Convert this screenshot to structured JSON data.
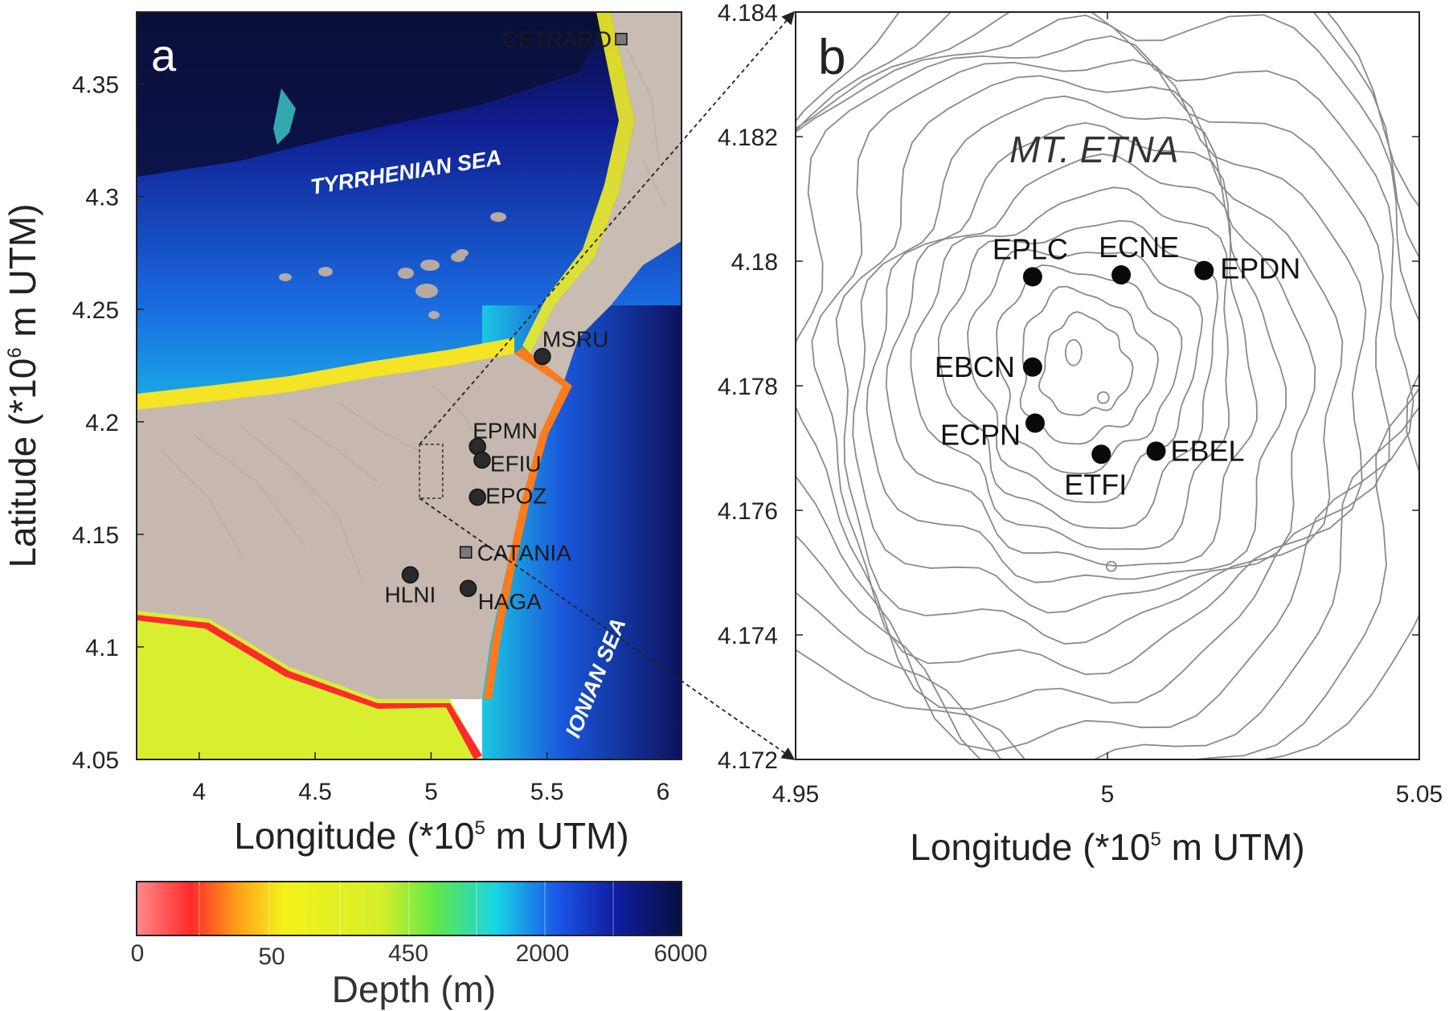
{
  "panel_a": {
    "label": "a",
    "xlabel": "Longitude (*10",
    "xlabel_sup": "5",
    "xlabel_tail": " m UTM)",
    "ylabel": "Latitude (*10",
    "ylabel_sup": "6",
    "ylabel_tail": " m UTM)",
    "xlim": [
      3.73,
      6.08
    ],
    "ylim": [
      4.05,
      4.382
    ],
    "xticks": [
      {
        "v": 4,
        "t": "4"
      },
      {
        "v": 4.5,
        "t": "4.5"
      },
      {
        "v": 5,
        "t": "5"
      },
      {
        "v": 5.5,
        "t": "5.5"
      },
      {
        "v": 6,
        "t": "6"
      }
    ],
    "yticks": [
      {
        "v": 4.05,
        "t": "4.05"
      },
      {
        "v": 4.1,
        "t": "4.1"
      },
      {
        "v": 4.15,
        "t": "4.15"
      },
      {
        "v": 4.2,
        "t": "4.2"
      },
      {
        "v": 4.25,
        "t": "4.25"
      },
      {
        "v": 4.3,
        "t": "4.3"
      },
      {
        "v": 4.35,
        "t": "4.35"
      }
    ],
    "sea_labels": [
      "TYRRHENIAN SEA",
      "IONIAN SEA"
    ],
    "stations": [
      {
        "name": "MSRU",
        "x": 5.48,
        "y": 4.229
      },
      {
        "name": "EPMN",
        "x": 5.2,
        "y": 4.189
      },
      {
        "name": "EFIU",
        "x": 5.22,
        "y": 4.183
      },
      {
        "name": "EPOZ",
        "x": 5.2,
        "y": 4.1665
      },
      {
        "name": "HLNI",
        "x": 4.91,
        "y": 4.132
      },
      {
        "name": "HAGA",
        "x": 5.16,
        "y": 4.126
      }
    ],
    "towns": [
      {
        "name": "CETRARO",
        "x": 5.82,
        "y": 4.37
      },
      {
        "name": "CATANIA",
        "x": 5.15,
        "y": 4.142
      }
    ],
    "inset_box": {
      "x0": 4.95,
      "x1": 5.05,
      "y0": 4.166,
      "y1": 4.19
    }
  },
  "colorbar": {
    "title": "Depth (m)",
    "ticks": [
      "0",
      "50",
      "450",
      "2000",
      "6000"
    ]
  },
  "panel_b": {
    "label": "b",
    "title": "MT. ETNA",
    "xlabel": "Longitude (*10",
    "xlabel_sup": "5",
    "xlabel_tail": " m UTM)",
    "xlim": [
      4.95,
      5.05
    ],
    "ylim": [
      4.172,
      4.184
    ],
    "xticks": [
      {
        "v": 4.95,
        "t": "4.95"
      },
      {
        "v": 5,
        "t": "5"
      },
      {
        "v": 5.05,
        "t": "5.05"
      }
    ],
    "yticks": [
      {
        "v": 4.172,
        "t": "4.172"
      },
      {
        "v": 4.174,
        "t": "4.174"
      },
      {
        "v": 4.176,
        "t": "4.176"
      },
      {
        "v": 4.178,
        "t": "4.178"
      },
      {
        "v": 4.18,
        "t": "4.18"
      },
      {
        "v": 4.182,
        "t": "4.182"
      },
      {
        "v": 4.184,
        "t": "4.184"
      }
    ],
    "stations": [
      {
        "name": "EPLC",
        "x": 4.988,
        "y": 4.17975
      },
      {
        "name": "ECNE",
        "x": 5.0022,
        "y": 4.17978
      },
      {
        "name": "EPDN",
        "x": 5.0155,
        "y": 4.17985
      },
      {
        "name": "EBCN",
        "x": 4.988,
        "y": 4.1783
      },
      {
        "name": "ECPN",
        "x": 4.9884,
        "y": 4.1774
      },
      {
        "name": "ETFI",
        "x": 4.999,
        "y": 4.1769
      },
      {
        "name": "EBEL",
        "x": 5.0078,
        "y": 4.17695
      }
    ]
  },
  "chart_data": [
    {
      "type": "scatter",
      "title": "a",
      "xlabel": "Longitude (*10^5 m UTM)",
      "ylabel": "Latitude (*10^6 m UTM)",
      "xlim": [
        3.73,
        6.08
      ],
      "ylim": [
        4.05,
        4.382
      ],
      "series": [
        {
          "name": "stations",
          "points": [
            {
              "label": "MSRU",
              "x": 5.48,
              "y": 4.229
            },
            {
              "label": "EPMN",
              "x": 5.2,
              "y": 4.189
            },
            {
              "label": "EFIU",
              "x": 5.22,
              "y": 4.183
            },
            {
              "label": "EPOZ",
              "x": 5.2,
              "y": 4.1665
            },
            {
              "label": "HLNI",
              "x": 4.91,
              "y": 4.132
            },
            {
              "label": "HAGA",
              "x": 5.16,
              "y": 4.126
            }
          ]
        },
        {
          "name": "towns",
          "points": [
            {
              "label": "CETRARO",
              "x": 5.82,
              "y": 4.37
            },
            {
              "label": "CATANIA",
              "x": 5.15,
              "y": 4.142
            }
          ]
        }
      ]
    },
    {
      "type": "scatter",
      "title": "b",
      "xlabel": "Longitude (*10^5 m UTM)",
      "xlim": [
        4.95,
        5.05
      ],
      "ylim": [
        4.172,
        4.184
      ],
      "series": [
        {
          "name": "stations",
          "points": [
            {
              "label": "EPLC",
              "x": 4.988,
              "y": 4.17975
            },
            {
              "label": "ECNE",
              "x": 5.0022,
              "y": 4.17978
            },
            {
              "label": "EPDN",
              "x": 5.0155,
              "y": 4.17985
            },
            {
              "label": "EBCN",
              "x": 4.988,
              "y": 4.1783
            },
            {
              "label": "ECPN",
              "x": 4.9884,
              "y": 4.1774
            },
            {
              "label": "ETFI",
              "x": 4.999,
              "y": 4.1769
            },
            {
              "label": "EBEL",
              "x": 5.0078,
              "y": 4.17695
            }
          ]
        }
      ]
    }
  ]
}
